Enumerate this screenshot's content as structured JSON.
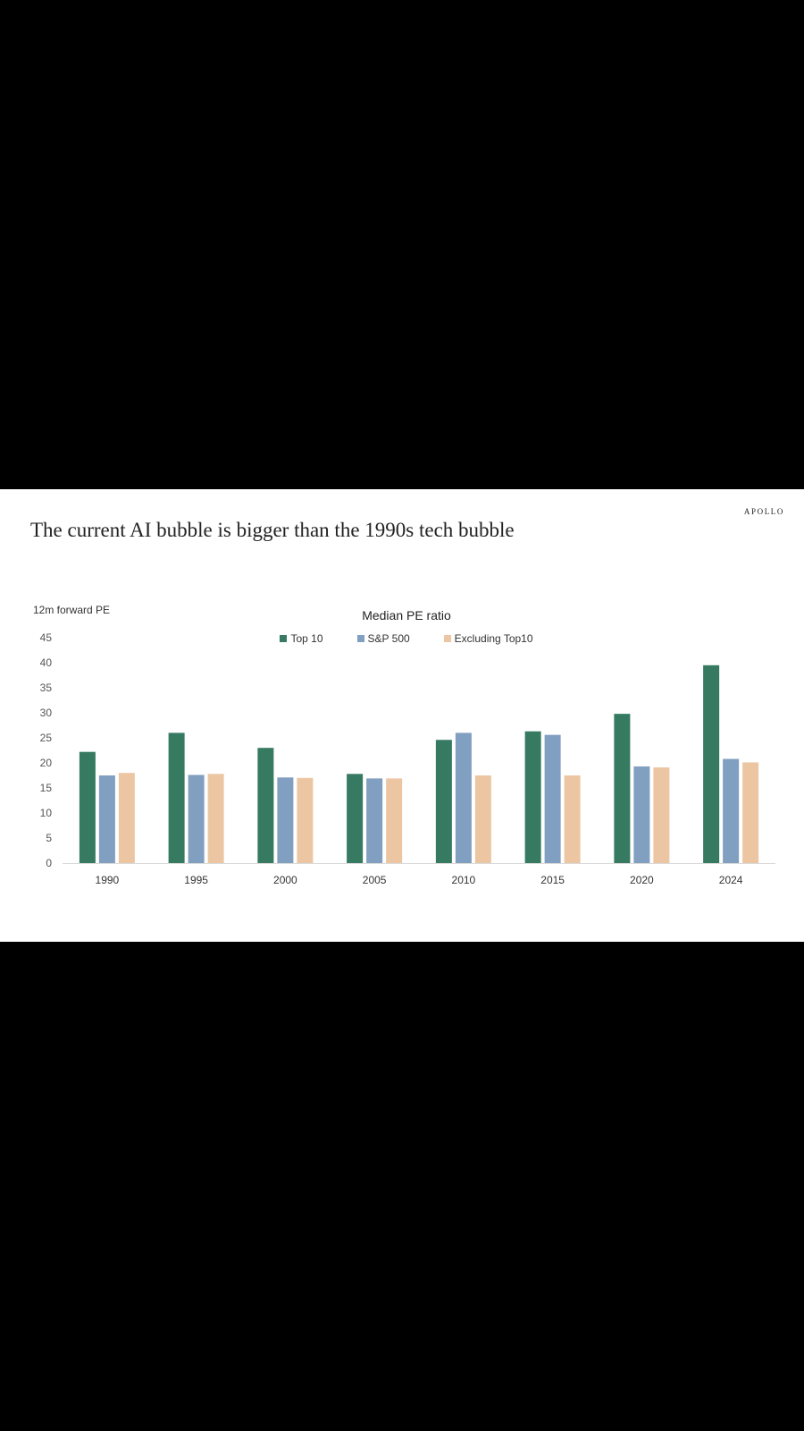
{
  "header": {
    "brand": "APOLLO",
    "title": "The current AI bubble is bigger than the 1990s tech bubble"
  },
  "chart_data": {
    "type": "bar",
    "title": "Median PE ratio",
    "ylabel": "12m forward PE",
    "xlabel": "",
    "ylim": [
      0,
      45
    ],
    "yticks": [
      0,
      5,
      10,
      15,
      20,
      25,
      30,
      35,
      40,
      45
    ],
    "grid": false,
    "legend_position": "top",
    "categories": [
      "1990",
      "1995",
      "2000",
      "2005",
      "2010",
      "2015",
      "2020",
      "2024"
    ],
    "series": [
      {
        "name": "Top 10",
        "color": "#367A62",
        "values": [
          22.2,
          26.0,
          23.0,
          17.8,
          24.6,
          26.3,
          29.8,
          39.5
        ]
      },
      {
        "name": "S&P 500",
        "color": "#819FC0",
        "values": [
          17.5,
          17.6,
          17.1,
          16.9,
          26.0,
          25.6,
          19.3,
          20.8
        ]
      },
      {
        "name": "Excluding Top10",
        "color": "#ECC6A2",
        "values": [
          18.0,
          17.8,
          17.0,
          16.9,
          17.5,
          17.5,
          19.1,
          20.1
        ]
      }
    ]
  }
}
